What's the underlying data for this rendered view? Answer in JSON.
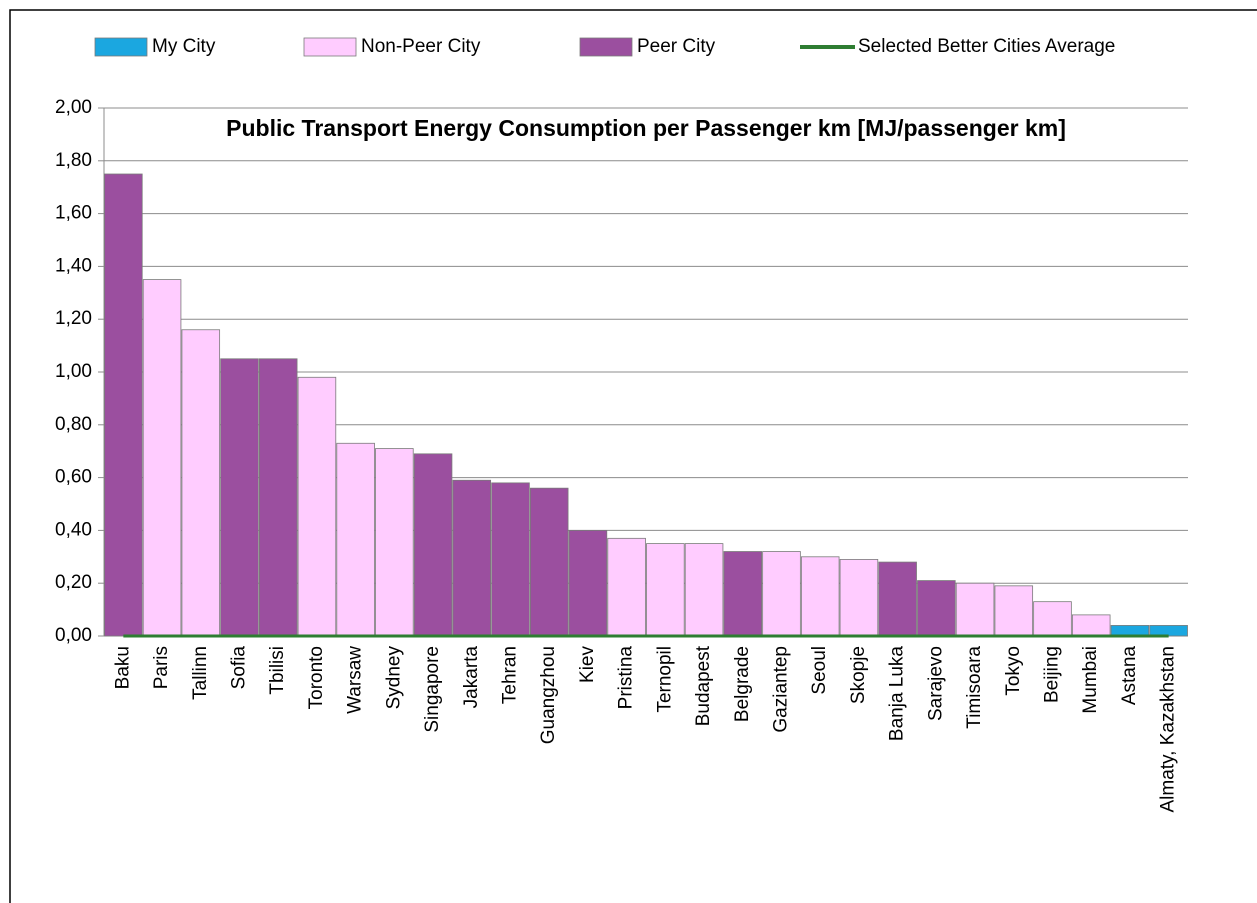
{
  "chart_data": {
    "type": "bar",
    "title": "Public Transport Energy Consumption per Passenger km [MJ/passenger km]",
    "categories": [
      "Baku",
      "Paris",
      "Tallinn",
      "Sofia",
      "Tbilisi",
      "Toronto",
      "Warsaw",
      "Sydney",
      "Singapore",
      "Jakarta",
      "Tehran",
      "Guangzhou",
      "Kiev",
      "Pristina",
      "Ternopil",
      "Budapest",
      "Belgrade",
      "Gaziantep",
      "Seoul",
      "Skopje",
      "Banja Luka",
      "Sarajevo",
      "Timisoara",
      "Tokyo",
      "Beijing",
      "Mumbai",
      "Astana",
      "Almaty, Kazakhstan"
    ],
    "series": [
      {
        "name": "My City",
        "color": "#1ba7e0",
        "values": [
          null,
          null,
          null,
          null,
          null,
          null,
          null,
          null,
          null,
          null,
          null,
          null,
          null,
          null,
          null,
          null,
          null,
          null,
          null,
          null,
          null,
          null,
          null,
          null,
          null,
          null,
          0.04,
          0.04
        ]
      },
      {
        "name": "Non-Peer City",
        "color": "#ffccff",
        "values": [
          null,
          1.35,
          1.16,
          null,
          null,
          0.98,
          0.73,
          0.71,
          null,
          null,
          null,
          null,
          null,
          0.37,
          0.35,
          0.35,
          null,
          0.32,
          0.3,
          0.29,
          null,
          null,
          0.2,
          0.19,
          0.13,
          0.08,
          null,
          null
        ]
      },
      {
        "name": "Peer City",
        "color": "#9b4f9f",
        "values": [
          1.75,
          null,
          null,
          1.05,
          1.05,
          null,
          null,
          null,
          0.69,
          0.59,
          0.58,
          0.56,
          0.4,
          null,
          null,
          null,
          0.32,
          null,
          null,
          null,
          0.28,
          0.21,
          null,
          null,
          null,
          null,
          null,
          null
        ]
      },
      {
        "name": "Selected Better Cities Average",
        "type": "line",
        "color": "#2e7d32",
        "values": [
          0,
          0,
          0,
          0,
          0,
          0,
          0,
          0,
          0,
          0,
          0,
          0,
          0,
          0,
          0,
          0,
          0,
          0,
          0,
          0,
          0,
          0,
          0,
          0,
          0,
          0,
          0,
          0
        ]
      }
    ],
    "ylim": [
      0,
      2
    ],
    "yticks": [
      {
        "value": 0,
        "label": "0,00"
      },
      {
        "value": 0.2,
        "label": "0,20"
      },
      {
        "value": 0.4,
        "label": "0,40"
      },
      {
        "value": 0.6,
        "label": "0,60"
      },
      {
        "value": 0.8,
        "label": "0,80"
      },
      {
        "value": 1,
        "label": "1,00"
      },
      {
        "value": 1.2,
        "label": "1,20"
      },
      {
        "value": 1.4,
        "label": "1,40"
      },
      {
        "value": 1.6,
        "label": "1,60"
      },
      {
        "value": 1.8,
        "label": "1,80"
      },
      {
        "value": 2,
        "label": "2,00"
      }
    ],
    "grid": true,
    "legend": "top"
  }
}
